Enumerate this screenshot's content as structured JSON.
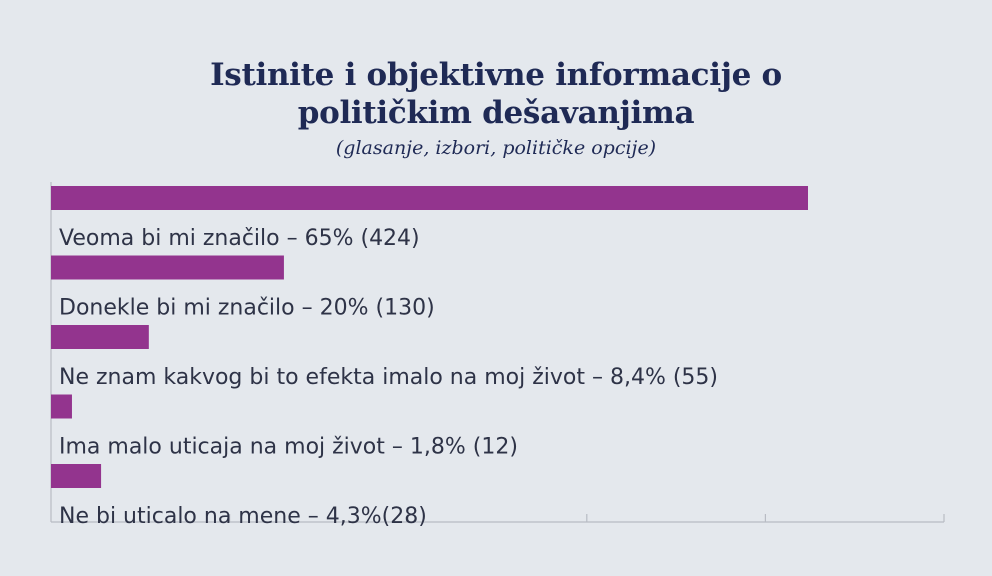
{
  "title_line1": "Istinite i objektivne informacije o",
  "title_line2": "političkim dešavanjima",
  "subtitle": "(glasanje, izbori, političke opcije)",
  "colors": {
    "bar": "#93348e",
    "axis": "#b8bcc4",
    "title": "#1f2a55",
    "background": "#e4e8ed"
  },
  "chart_data": {
    "type": "bar",
    "orientation": "horizontal",
    "title": "Istinite i objektivne informacije o političkim dešavanjima",
    "subtitle": "(glasanje, izbori, političke opcije)",
    "xlim": [
      0,
      77
    ],
    "grid": false,
    "categories": [
      "Veoma bi mi značilo – 65% (424)",
      "Donekle bi mi značilo – 20% (130)",
      "Ne znam kakvog bi to efekta imalo na moj život – 8,4% (55)",
      "Ima malo uticaja na moj život – 1,8% (12)",
      "Ne bi uticalo na mene – 4,3%(28)"
    ],
    "values": [
      65,
      20,
      8.4,
      1.8,
      4.3
    ]
  }
}
